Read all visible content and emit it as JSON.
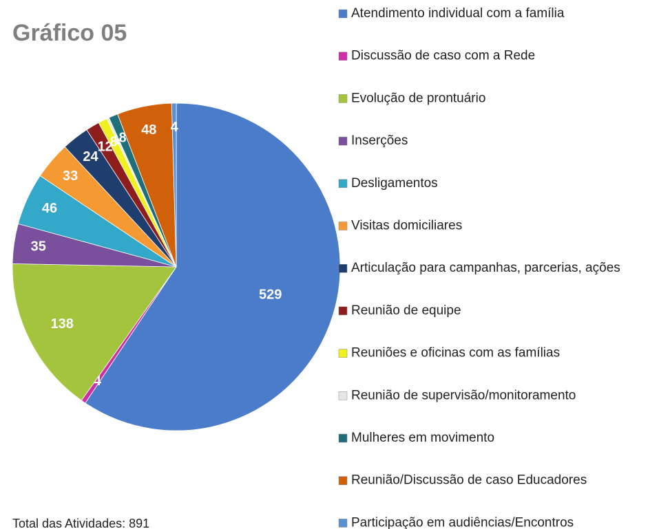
{
  "chart_data": {
    "type": "pie",
    "title": "Gráfico 05",
    "annotation": "Total das Atividades: 891",
    "categories": [
      "Atendimento individual com a família",
      "Discussão de caso com a Rede",
      "Evolução de prontuário",
      "Inserções",
      "Desligamentos",
      "Visitas domiciliares",
      "Articulação para campanhas, parcerias, ações",
      "Reunião de equipe",
      "Reuniões e oficinas com as famílias",
      "Reunião de supervisão/monitoramento",
      "Mulheres em movimento",
      "Reunião/Discussão de caso Educadores",
      "Participação em audiências/Encontros"
    ],
    "values": [
      529,
      4,
      138,
      35,
      46,
      33,
      24,
      12,
      8,
      2,
      8,
      48,
      4
    ],
    "colors": [
      "#4a7cc9",
      "#cc2fa8",
      "#a3c43c",
      "#7a4f9c",
      "#33a8c8",
      "#f59a33",
      "#1f3e6e",
      "#8e1e1e",
      "#f0f020",
      "#e6e6e6",
      "#1f6e7a",
      "#d0600a",
      "#5a8fd0"
    ],
    "legend": "right"
  }
}
